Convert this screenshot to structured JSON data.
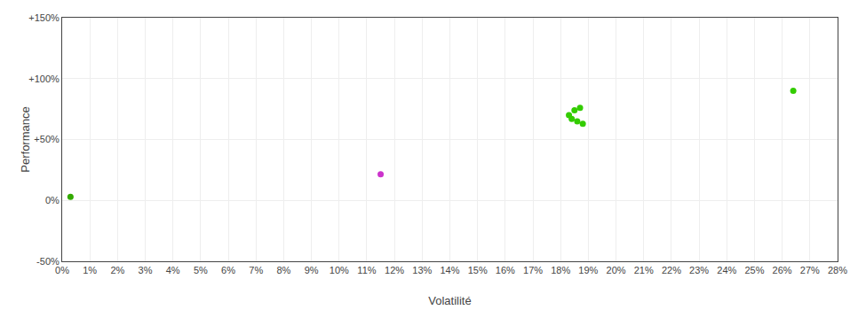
{
  "chart_data": {
    "type": "scatter",
    "xlabel": "Volatilité",
    "ylabel": "Performance",
    "xlim": [
      0.0,
      0.28
    ],
    "ylim": [
      -0.5,
      1.5
    ],
    "xticks": [
      {
        "value": 0.0,
        "label": "0%"
      },
      {
        "value": 0.01,
        "label": "1%"
      },
      {
        "value": 0.02,
        "label": "2%"
      },
      {
        "value": 0.03,
        "label": "3%"
      },
      {
        "value": 0.04,
        "label": "4%"
      },
      {
        "value": 0.05,
        "label": "5%"
      },
      {
        "value": 0.06,
        "label": "6%"
      },
      {
        "value": 0.07,
        "label": "7%"
      },
      {
        "value": 0.08,
        "label": "8%"
      },
      {
        "value": 0.09,
        "label": "9%"
      },
      {
        "value": 0.1,
        "label": "10%"
      },
      {
        "value": 0.11,
        "label": "11%"
      },
      {
        "value": 0.12,
        "label": "12%"
      },
      {
        "value": 0.13,
        "label": "13%"
      },
      {
        "value": 0.14,
        "label": "14%"
      },
      {
        "value": 0.15,
        "label": "15%"
      },
      {
        "value": 0.16,
        "label": "16%"
      },
      {
        "value": 0.17,
        "label": "17%"
      },
      {
        "value": 0.18,
        "label": "18%"
      },
      {
        "value": 0.19,
        "label": "19%"
      },
      {
        "value": 0.2,
        "label": "20%"
      },
      {
        "value": 0.21,
        "label": "21%"
      },
      {
        "value": 0.22,
        "label": "22%"
      },
      {
        "value": 0.23,
        "label": "23%"
      },
      {
        "value": 0.24,
        "label": "24%"
      },
      {
        "value": 0.25,
        "label": "25%"
      },
      {
        "value": 0.26,
        "label": "26%"
      },
      {
        "value": 0.27,
        "label": "27%"
      },
      {
        "value": 0.28,
        "label": "28%"
      }
    ],
    "yticks": [
      {
        "value": -0.5,
        "label": "-50%"
      },
      {
        "value": 0.0,
        "label": "0%"
      },
      {
        "value": 0.5,
        "label": "+50%"
      },
      {
        "value": 1.0,
        "label": "+100%"
      },
      {
        "value": 1.5,
        "label": "+150%"
      }
    ],
    "grid": true,
    "series": [
      {
        "color": "#33cc00",
        "x": [
          0.183,
          0.185,
          0.187,
          0.184,
          0.186,
          0.188,
          0.264
        ],
        "values": [
          0.7,
          0.74,
          0.76,
          0.67,
          0.65,
          0.63,
          0.9
        ]
      },
      {
        "color": "#cc33cc",
        "x": [
          0.115
        ],
        "values": [
          0.215
        ]
      },
      {
        "color": "#33aa00",
        "x": [
          0.003
        ],
        "values": [
          0.03
        ]
      }
    ]
  }
}
